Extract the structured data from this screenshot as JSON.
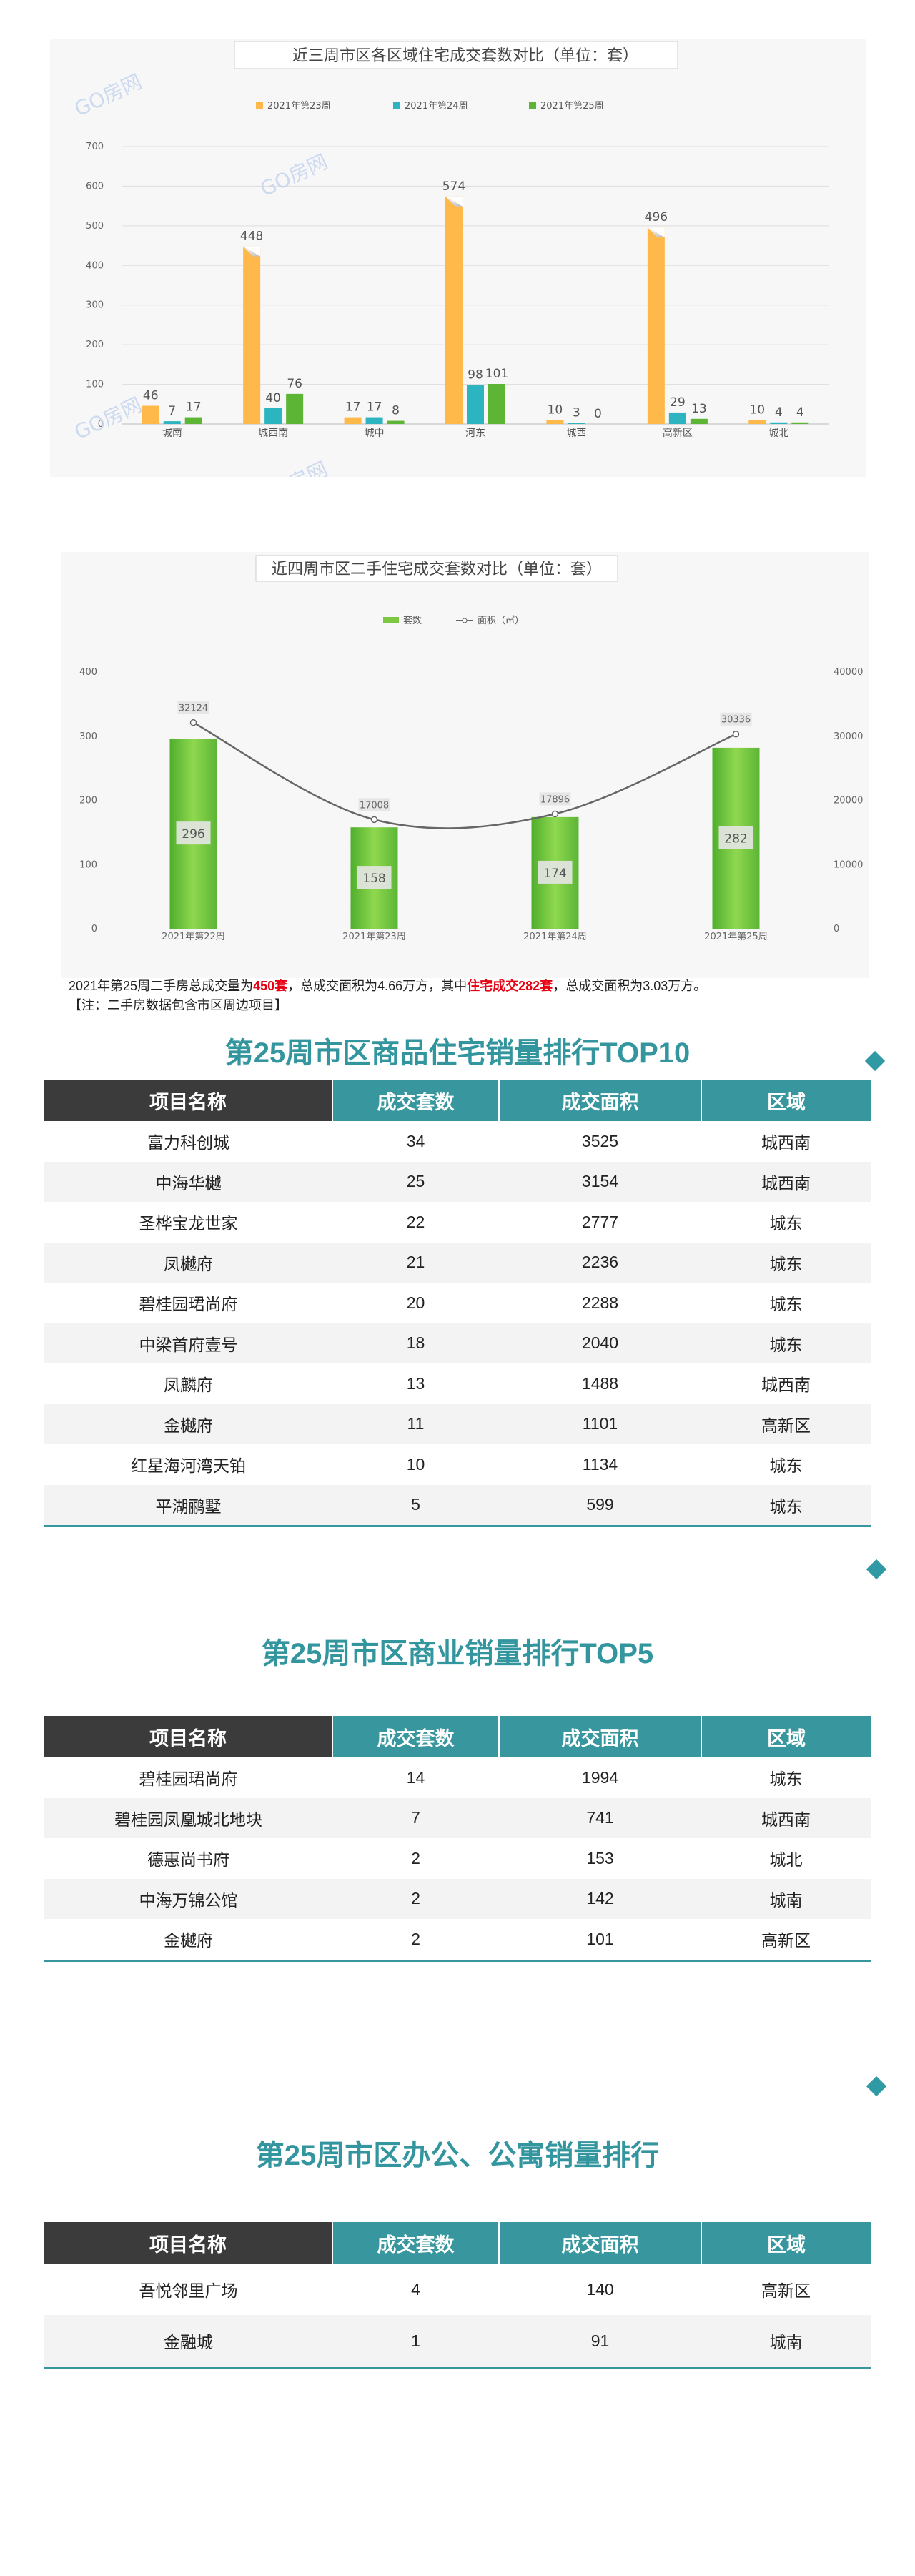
{
  "chart_data": [
    {
      "type": "bar",
      "title": "近三周市区各区域住宅成交套数对比（单位：套）",
      "categories": [
        "城南",
        "城西南",
        "城中",
        "河东",
        "城西",
        "高新区",
        "城北"
      ],
      "series": [
        {
          "name": "2021年第23周",
          "color": "#ffb84a",
          "values": [
            46,
            448,
            17,
            574,
            10,
            496,
            10
          ]
        },
        {
          "name": "2021年第24周",
          "color": "#2cb5c0",
          "values": [
            7,
            40,
            17,
            98,
            3,
            29,
            4
          ]
        },
        {
          "name": "2021年第25周",
          "color": "#5cb535",
          "values": [
            17,
            76,
            8,
            101,
            0,
            13,
            4
          ]
        }
      ],
      "ylim": [
        0,
        700
      ],
      "yticks": [
        0,
        100,
        200,
        300,
        400,
        500,
        600,
        700
      ],
      "grid": true,
      "legend": "top",
      "watermark": "GO房网"
    },
    {
      "type": "bar",
      "title": "近四周市区二手住宅成交套数对比（单位：套）",
      "categories": [
        "2021年第22周",
        "2021年第23周",
        "2021年第24周",
        "2021年第25周"
      ],
      "series": [
        {
          "name": "套数",
          "type": "bar",
          "axis": "left",
          "color": "#7cc843",
          "values": [
            296,
            158,
            174,
            282
          ]
        },
        {
          "name": "面积（㎡）",
          "type": "line",
          "axis": "right",
          "color": "#666666",
          "values": [
            32124,
            17008,
            17896,
            30336
          ]
        }
      ],
      "ylim": [
        0,
        400
      ],
      "yticks": [
        0,
        100,
        200,
        300,
        400
      ],
      "y2lim": [
        0,
        40000
      ],
      "y2ticks": [
        0,
        10000,
        20000,
        30000,
        40000
      ],
      "grid": false,
      "legend": "top"
    }
  ],
  "summary": {
    "line1_a": "2021年第25周二手房总成交量为",
    "line1_b": "450套",
    "line1_c": "，总成交面积为4.66万方，其中",
    "line1_d": "住宅成交282套",
    "line1_e": "，总成交面积为3.03万方。",
    "line2": "【注：二手房数据包含市区周边项目】"
  },
  "section1": {
    "title": "第25周市区商品住宅销量排行TOP10",
    "columns": [
      "项目名称",
      "成交套数",
      "成交面积",
      "区域"
    ],
    "rows": [
      [
        "富力科创城",
        "34",
        "3525",
        "城西南"
      ],
      [
        "中海华樾",
        "25",
        "3154",
        "城西南"
      ],
      [
        "圣桦宝龙世家",
        "22",
        "2777",
        "城东"
      ],
      [
        "凤樾府",
        "21",
        "2236",
        "城东"
      ],
      [
        "碧桂园珺尚府",
        "20",
        "2288",
        "城东"
      ],
      [
        "中梁首府壹号",
        "18",
        "2040",
        "城东"
      ],
      [
        "凤麟府",
        "13",
        "1488",
        "城西南"
      ],
      [
        "金樾府",
        "11",
        "1101",
        "高新区"
      ],
      [
        "红星海河湾天铂",
        "10",
        "1134",
        "城东"
      ],
      [
        "平湖鹂墅",
        "5",
        "599",
        "城东"
      ]
    ]
  },
  "section2": {
    "title": "第25周市区商业销量排行TOP5",
    "columns": [
      "项目名称",
      "成交套数",
      "成交面积",
      "区域"
    ],
    "rows": [
      [
        "碧桂园珺尚府",
        "14",
        "1994",
        "城东"
      ],
      [
        "碧桂园凤凰城北地块",
        "7",
        "741",
        "城西南"
      ],
      [
        "德惠尚书府",
        "2",
        "153",
        "城北"
      ],
      [
        "中海万锦公馆",
        "2",
        "142",
        "城南"
      ],
      [
        "金樾府",
        "2",
        "101",
        "高新区"
      ]
    ]
  },
  "section3": {
    "title": "第25周市区办公、公寓销量排行",
    "columns": [
      "项目名称",
      "成交套数",
      "成交面积",
      "区域"
    ],
    "rows": [
      [
        "吾悦邻里广场",
        "4",
        "140",
        "高新区"
      ],
      [
        "金融城",
        "1",
        "91",
        "城南"
      ]
    ]
  }
}
